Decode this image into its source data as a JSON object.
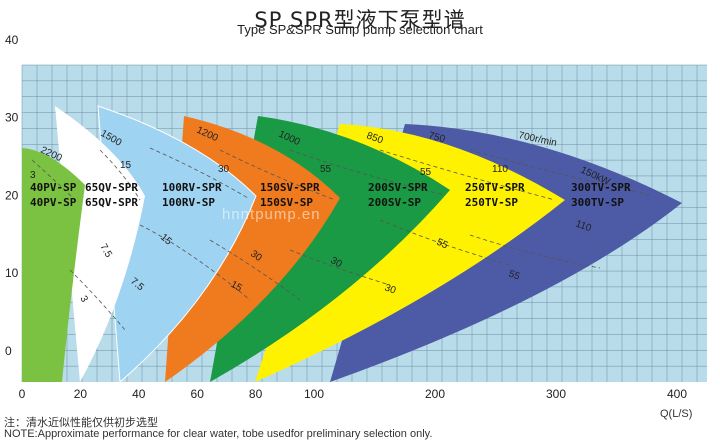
{
  "title_cn": "SP  SPR型液下泵型谱",
  "title_en": "Type  SP&SPR  Sump pump selection chart",
  "note_cn": "注：清水近似性能仅供初步选型",
  "note_en": "NOTE:Approximate performance for clear water, tobe usedfor preliminary selection only.",
  "watermark": "hnntpump.en",
  "chart_data": {
    "type": "area",
    "x_unit": "Q(L/S)",
    "x_ticks": [
      0,
      20,
      40,
      60,
      80,
      100,
      200,
      300,
      400
    ],
    "y_ticks": [
      0,
      10,
      20,
      30,
      40
    ],
    "grid": true,
    "series": [
      {
        "name": "40PV-SP",
        "color": "#7cc242",
        "speed_labels": [
          "3",
          "2200"
        ]
      },
      {
        "name": "65QV-SPR / 65QV-SP",
        "color": "#ffffff",
        "speed_labels": [
          "3",
          "7.5",
          "15",
          "1500"
        ]
      },
      {
        "name": "100RV-SPR / 100RV-SP",
        "color": "#9fd3f2",
        "speed_labels": [
          "7.5",
          "15",
          "30",
          "1200"
        ]
      },
      {
        "name": "150SV-SPR / 150SV-SP",
        "color": "#f07a1e",
        "speed_labels": [
          "15",
          "30",
          "55",
          "1000"
        ]
      },
      {
        "name": "200SV-SPR / 200SV-SP",
        "color": "#1a9a44",
        "speed_labels": [
          "30",
          "55",
          "850"
        ]
      },
      {
        "name": "250TV-SPR / 250TV-SP",
        "color": "#fff200",
        "speed_labels": [
          "30",
          "55",
          "110",
          "750"
        ]
      },
      {
        "name": "300TV-SPR / 300TV-SP",
        "color": "#4d5aa6",
        "speed_labels": [
          "55",
          "110",
          "150kW",
          "700r/min"
        ]
      }
    ]
  },
  "labels": {
    "l40a": "40PV-SP",
    "l40b": "40PV-SP",
    "l65a": "65QV-SPR",
    "l65b": "65QV-SPR",
    "l100a": "100RV-SPR",
    "l100b": "100RV-SP",
    "l150a": "150SV-SPR",
    "l150b": "150SV-SP",
    "l200a": "200SV-SPR",
    "l200b": "200SV-SP",
    "l250a": "250TV-SPR",
    "l250b": "250TV-SP",
    "l300a": "300TV-SPR",
    "l300b": "300TV-SP"
  },
  "curve_labels": {
    "g3": "3",
    "g2200": "2200",
    "w1500": "1500",
    "w15": "15",
    "w75": "7.5",
    "w3": "3",
    "b1200": "1200",
    "b30": "30",
    "b15": "15",
    "b75": "7.5",
    "o1000": "1000",
    "o55": "55",
    "o30": "30",
    "o15": "15",
    "gr850": "850",
    "gr55": "55",
    "gr30": "30",
    "y750": "750",
    "y110": "110",
    "y55": "55",
    "y30": "30",
    "n700": "700r/min",
    "n150": "150kW",
    "n110": "110",
    "n55": "55"
  }
}
